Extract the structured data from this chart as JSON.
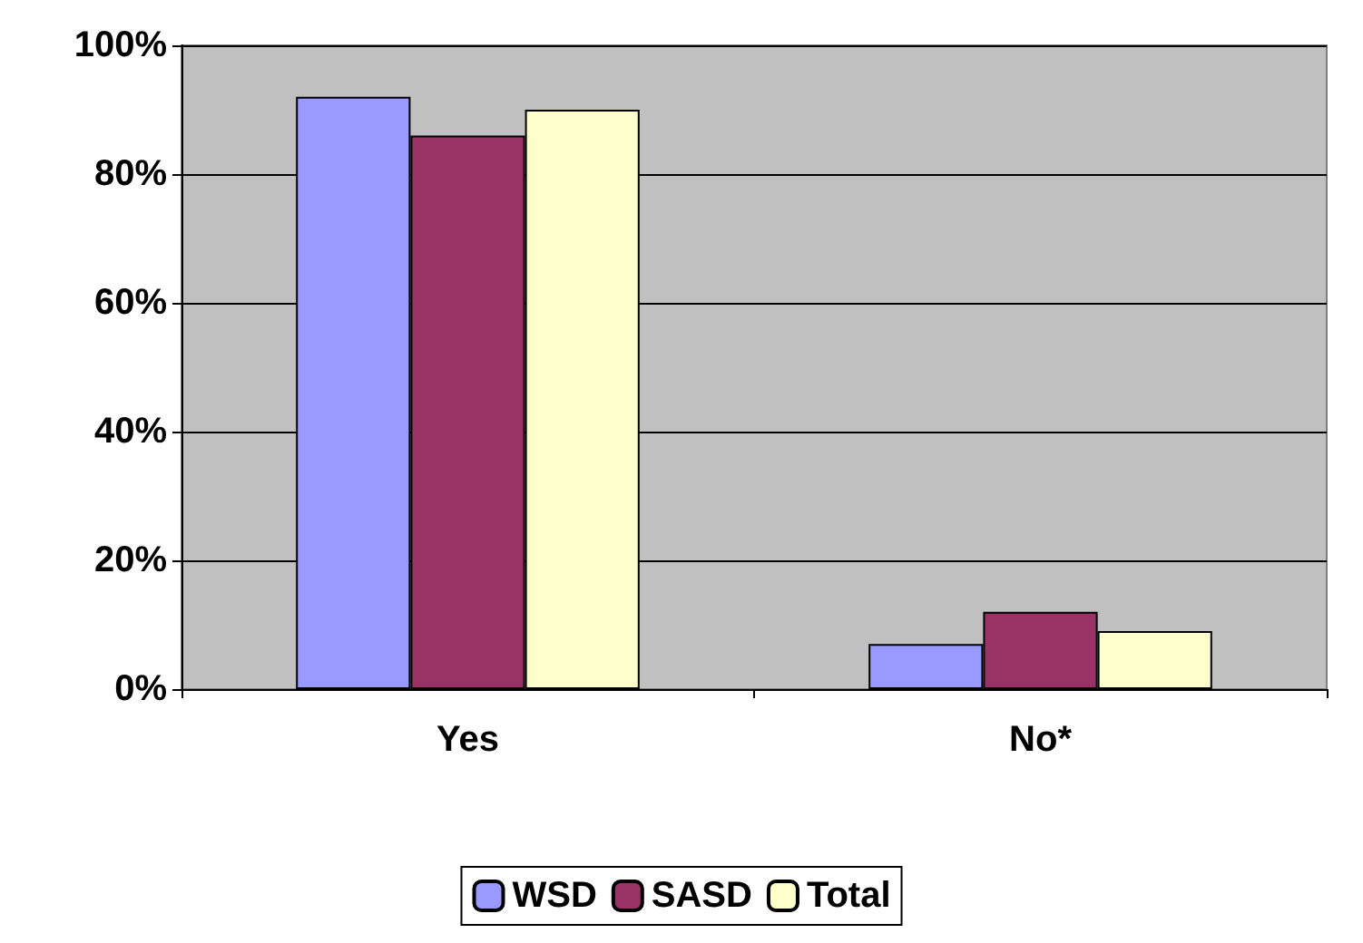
{
  "chart_data": {
    "type": "bar",
    "categories": [
      "Yes",
      "No*"
    ],
    "series": [
      {
        "name": "WSD",
        "color": "#9999ff",
        "values": [
          92,
          7
        ]
      },
      {
        "name": "SASD",
        "color": "#993366",
        "values": [
          86,
          12
        ]
      },
      {
        "name": "Total",
        "color": "#ffffcc",
        "values": [
          90,
          9
        ]
      }
    ],
    "ylim": [
      0,
      100
    ],
    "yticks": [
      {
        "value": 0,
        "label": "0%"
      },
      {
        "value": 20,
        "label": "20%"
      },
      {
        "value": 40,
        "label": "40%"
      },
      {
        "value": 60,
        "label": "60%"
      },
      {
        "value": 80,
        "label": "80%"
      },
      {
        "value": 100,
        "label": "100%"
      }
    ],
    "grid": "y",
    "legend": "bottom"
  }
}
